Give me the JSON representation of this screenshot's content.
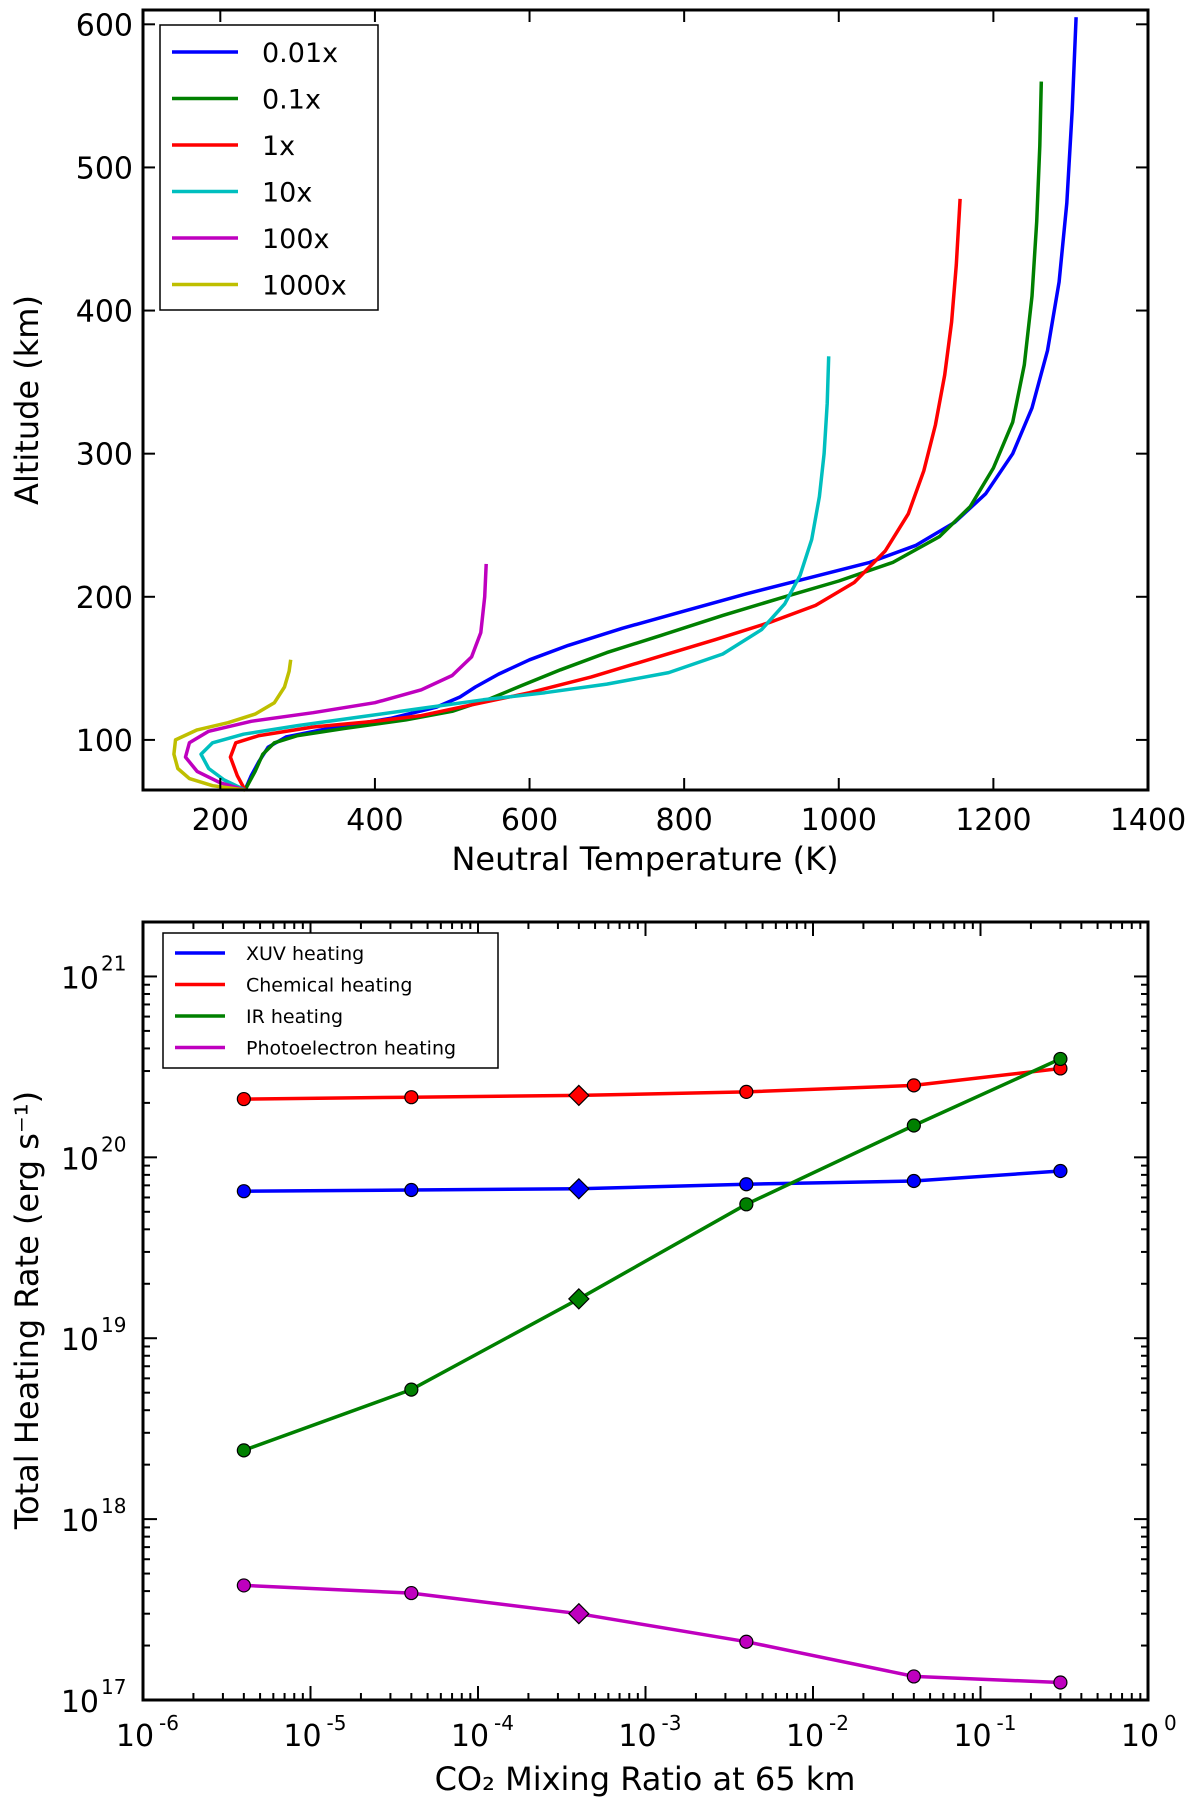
{
  "chart_data": [
    {
      "type": "line",
      "title": "",
      "xlabel": "Neutral Temperature (K)",
      "ylabel": "Altitude (km)",
      "xlim": [
        100,
        1400
      ],
      "ylim": [
        65,
        610
      ],
      "xticks": [
        200,
        400,
        600,
        800,
        1000,
        1200,
        1400
      ],
      "yticks": [
        100,
        200,
        300,
        400,
        500,
        600
      ],
      "xtick_labels": [
        "200",
        "400",
        "600",
        "800",
        "1000",
        "1200",
        "1400"
      ],
      "ytick_labels": [
        "100",
        "200",
        "300",
        "400",
        "500",
        "600"
      ],
      "legend": "top-left",
      "series": [
        {
          "name": "0.01x",
          "color": "#0000ff",
          "points": [
            [
              232,
              65
            ],
            [
              240,
              75
            ],
            [
              250,
              85
            ],
            [
              262,
              95
            ],
            [
              285,
              102
            ],
            [
              340,
              108
            ],
            [
              420,
              115
            ],
            [
              480,
              123
            ],
            [
              510,
              130
            ],
            [
              530,
              137
            ],
            [
              560,
              146
            ],
            [
              600,
              156
            ],
            [
              650,
              166
            ],
            [
              720,
              178
            ],
            [
              800,
              190
            ],
            [
              880,
              202
            ],
            [
              960,
              213
            ],
            [
              1040,
              224
            ],
            [
              1100,
              236
            ],
            [
              1150,
              252
            ],
            [
              1190,
              272
            ],
            [
              1225,
              300
            ],
            [
              1250,
              332
            ],
            [
              1270,
              372
            ],
            [
              1285,
              420
            ],
            [
              1295,
              475
            ],
            [
              1302,
              540
            ],
            [
              1307,
              605
            ]
          ]
        },
        {
          "name": "0.1x",
          "color": "#008000",
          "points": [
            [
              232,
              65
            ],
            [
              245,
              78
            ],
            [
              255,
              90
            ],
            [
              270,
              98
            ],
            [
              300,
              103
            ],
            [
              360,
              108
            ],
            [
              440,
              114
            ],
            [
              500,
              120
            ],
            [
              550,
              129
            ],
            [
              590,
              138
            ],
            [
              640,
              149
            ],
            [
              700,
              161
            ],
            [
              770,
              173
            ],
            [
              850,
              187
            ],
            [
              930,
              200
            ],
            [
              1000,
              211
            ],
            [
              1070,
              224
            ],
            [
              1130,
              242
            ],
            [
              1170,
              263
            ],
            [
              1200,
              290
            ],
            [
              1225,
              322
            ],
            [
              1240,
              362
            ],
            [
              1250,
              410
            ],
            [
              1256,
              462
            ],
            [
              1260,
              515
            ],
            [
              1262,
              560
            ]
          ]
        },
        {
          "name": "1x",
          "color": "#ff0000",
          "points": [
            [
              232,
              65
            ],
            [
              222,
              75
            ],
            [
              213,
              88
            ],
            [
              220,
              98
            ],
            [
              250,
              103
            ],
            [
              320,
              109
            ],
            [
              400,
              113
            ],
            [
              460,
              117
            ],
            [
              530,
              125
            ],
            [
              600,
              133
            ],
            [
              680,
              144
            ],
            [
              760,
              157
            ],
            [
              840,
              170
            ],
            [
              910,
              182
            ],
            [
              970,
              194
            ],
            [
              1020,
              210
            ],
            [
              1060,
              232
            ],
            [
              1090,
              258
            ],
            [
              1110,
              288
            ],
            [
              1125,
              320
            ],
            [
              1137,
              355
            ],
            [
              1146,
              392
            ],
            [
              1152,
              432
            ],
            [
              1157,
              478
            ]
          ]
        },
        {
          "name": "10x",
          "color": "#00bfbf",
          "points": [
            [
              232,
              65
            ],
            [
              205,
              72
            ],
            [
              185,
              80
            ],
            [
              175,
              90
            ],
            [
              190,
              98
            ],
            [
              230,
              104
            ],
            [
              300,
              110
            ],
            [
              380,
              116
            ],
            [
              460,
              122
            ],
            [
              540,
              128
            ],
            [
              620,
              133
            ],
            [
              700,
              139
            ],
            [
              780,
              147
            ],
            [
              850,
              160
            ],
            [
              900,
              177
            ],
            [
              930,
              195
            ],
            [
              950,
              215
            ],
            [
              965,
              240
            ],
            [
              975,
              270
            ],
            [
              981,
              300
            ],
            [
              985,
              335
            ],
            [
              987,
              368
            ]
          ]
        },
        {
          "name": "100x",
          "color": "#bf00bf",
          "points": [
            [
              232,
              65
            ],
            [
              200,
              70
            ],
            [
              170,
              78
            ],
            [
              155,
              88
            ],
            [
              160,
              98
            ],
            [
              185,
              106
            ],
            [
              240,
              113
            ],
            [
              320,
              119
            ],
            [
              400,
              126
            ],
            [
              460,
              135
            ],
            [
              500,
              145
            ],
            [
              525,
              158
            ],
            [
              537,
              175
            ],
            [
              542,
              200
            ],
            [
              544,
              223
            ]
          ]
        },
        {
          "name": "1000x",
          "color": "#bfbf00",
          "points": [
            [
              232,
              65
            ],
            [
              190,
              68
            ],
            [
              160,
              73
            ],
            [
              145,
              80
            ],
            [
              140,
              90
            ],
            [
              142,
              100
            ],
            [
              170,
              107
            ],
            [
              210,
              112
            ],
            [
              245,
              118
            ],
            [
              270,
              126
            ],
            [
              283,
              137
            ],
            [
              289,
              148
            ],
            [
              291,
              156
            ]
          ]
        }
      ]
    },
    {
      "type": "line",
      "title": "",
      "xlabel": "CO₂ Mixing Ratio at 65 km",
      "ylabel": "Total Heating Rate (erg s⁻¹)",
      "xscale": "log",
      "yscale": "log",
      "xlim": [
        1e-06,
        1
      ],
      "ylim": [
        1e+17,
        2e+21
      ],
      "xticks_exp": [
        -6,
        -5,
        -4,
        -3,
        -2,
        -1,
        0
      ],
      "xtick_exps": [
        "-6",
        "-5",
        "-4",
        "-3",
        "-2",
        "-1",
        "0"
      ],
      "yticks_exp": [
        17,
        18,
        19,
        20,
        21
      ],
      "ytick_exps": [
        "17",
        "18",
        "19",
        "20",
        "21"
      ],
      "tick_base": "10",
      "legend": "top-left",
      "x": [
        4e-06,
        4e-05,
        0.0004,
        0.004,
        0.04,
        0.3
      ],
      "highlight_index": 2,
      "series": [
        {
          "name": "XUV heating",
          "color": "#0000ff",
          "values": [
            6.5e+19,
            6.6e+19,
            6.7e+19,
            7.1e+19,
            7.4e+19,
            8.4e+19
          ]
        },
        {
          "name": "Chemical heating",
          "color": "#ff0000",
          "values": [
            2.1e+20,
            2.15e+20,
            2.2e+20,
            2.3e+20,
            2.5e+20,
            3.1e+20
          ]
        },
        {
          "name": "IR heating",
          "color": "#008000",
          "values": [
            2.4e+18,
            5.2e+18,
            1.65e+19,
            5.5e+19,
            1.5e+20,
            3.5e+20
          ]
        },
        {
          "name": "Photoelectron heating",
          "color": "#bf00bf",
          "values": [
            4.3e+17,
            3.9e+17,
            3e+17,
            2.1e+17,
            1.35e+17,
            1.25e+17
          ]
        }
      ]
    }
  ]
}
